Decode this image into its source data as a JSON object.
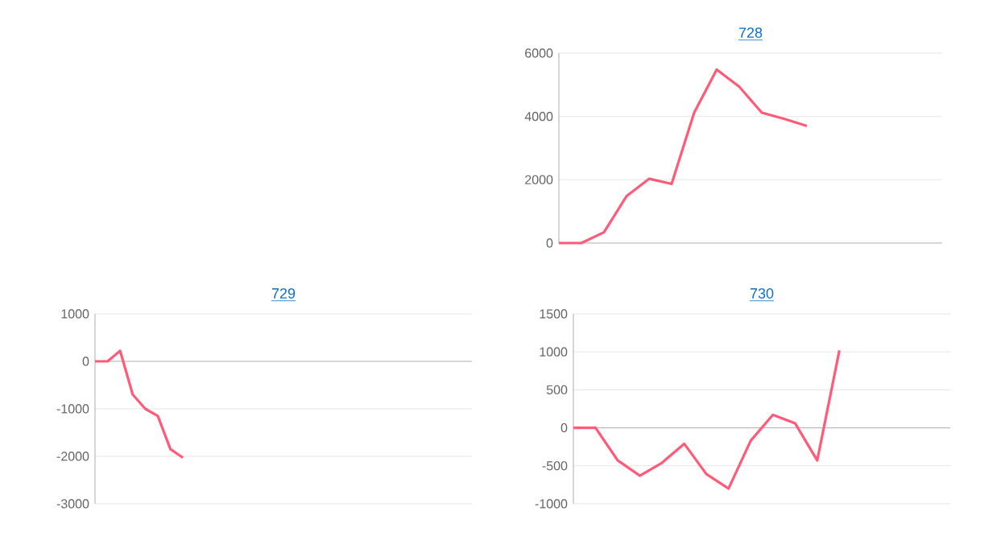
{
  "chart_data": [
    {
      "type": "line",
      "title": "728",
      "color": "#ff5a78",
      "grid": "y",
      "marker": "none",
      "line_style": "solid",
      "tick_labels": "y",
      "ylim": [
        0,
        6000
      ],
      "yticks": [
        0,
        2000,
        4000,
        6000
      ],
      "categories": [
        null,
        null,
        null,
        null,
        null,
        null,
        null,
        null,
        null,
        null,
        null,
        null,
        null,
        null,
        null,
        null,
        null,
        null
      ],
      "values": [
        0,
        0,
        340,
        1480,
        2030,
        1870,
        4120,
        5480,
        4940,
        4120,
        3920,
        3700,
        null,
        null,
        null,
        null,
        null,
        null
      ]
    },
    {
      "type": "line",
      "title": "729",
      "color": "#ff5a78",
      "grid": "y",
      "marker": "none",
      "line_style": "solid",
      "tick_labels": "y",
      "ylim": [
        -3000,
        1000
      ],
      "yticks": [
        -3000,
        -2000,
        -1000,
        0,
        1000
      ],
      "categories": [
        null,
        null,
        null,
        null,
        null,
        null,
        null,
        null,
        null,
        null,
        null,
        null,
        null,
        null,
        null,
        null,
        null,
        null,
        null,
        null,
        null,
        null,
        null,
        null,
        null,
        null,
        null,
        null,
        null,
        null,
        null
      ],
      "values": [
        0,
        0,
        220,
        -700,
        -1000,
        -1150,
        -1850,
        -2030,
        null,
        null,
        null,
        null,
        null,
        null,
        null,
        null,
        null,
        null,
        null,
        null,
        null,
        null,
        null,
        null,
        null,
        null,
        null,
        null,
        null,
        null,
        null
      ]
    },
    {
      "type": "line",
      "title": "730",
      "color": "#ff5a78",
      "grid": "y",
      "marker": "none",
      "line_style": "solid",
      "tick_labels": "y",
      "ylim": [
        -1000,
        1500
      ],
      "yticks": [
        -1000,
        -500,
        0,
        500,
        1000,
        1500
      ],
      "categories": [
        null,
        null,
        null,
        null,
        null,
        null,
        null,
        null,
        null,
        null,
        null,
        null,
        null,
        null,
        null,
        null,
        null,
        null
      ],
      "values": [
        0,
        0,
        -430,
        -630,
        -460,
        -210,
        -610,
        -800,
        -170,
        170,
        60,
        -430,
        1020,
        null,
        null,
        null,
        null,
        null
      ]
    }
  ]
}
